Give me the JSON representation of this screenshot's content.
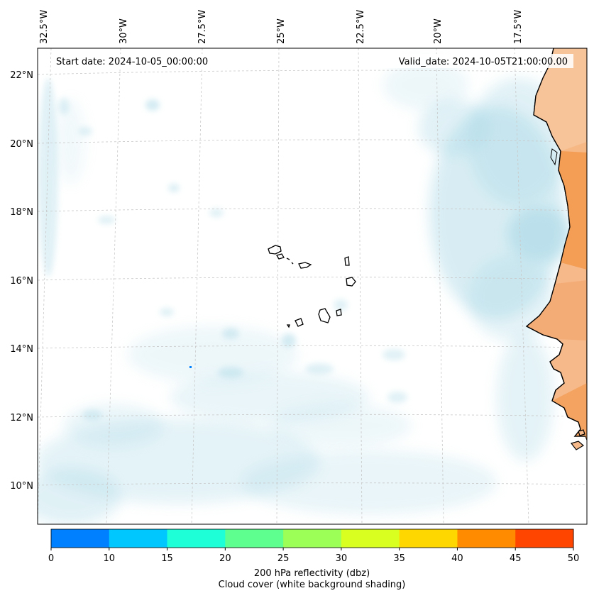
{
  "header": {
    "start_date": "Start date: 2024-10-05_00:00:00",
    "valid_date": "Valid_date: 2024-10-05T21:00:00.00"
  },
  "map": {
    "lon_labels": [
      "32.5°W",
      "30°W",
      "27.5°W",
      "25°W",
      "22.5°W",
      "20°W",
      "17.5°W"
    ],
    "lat_labels": [
      "22°N",
      "20°N",
      "18°N",
      "16°N",
      "14°N",
      "12°N",
      "10°N"
    ],
    "colors": {
      "cloud": "#a9d8e6",
      "land_warm": "#f4a460",
      "coast": "#000000",
      "grid": "#c8c8c8"
    }
  },
  "colorbar": {
    "ticks": [
      "0",
      "10",
      "15",
      "20",
      "25",
      "30",
      "35",
      "40",
      "45",
      "50"
    ],
    "colors": [
      "#0080ff",
      "#00c8ff",
      "#1effd8",
      "#5fff8f",
      "#9bff57",
      "#d8ff1f",
      "#ffd700",
      "#ff8c00",
      "#ff4500"
    ],
    "title_line1": "200 hPa reflectivity (dbz)",
    "title_line2": "Cloud cover (white background shading)"
  }
}
